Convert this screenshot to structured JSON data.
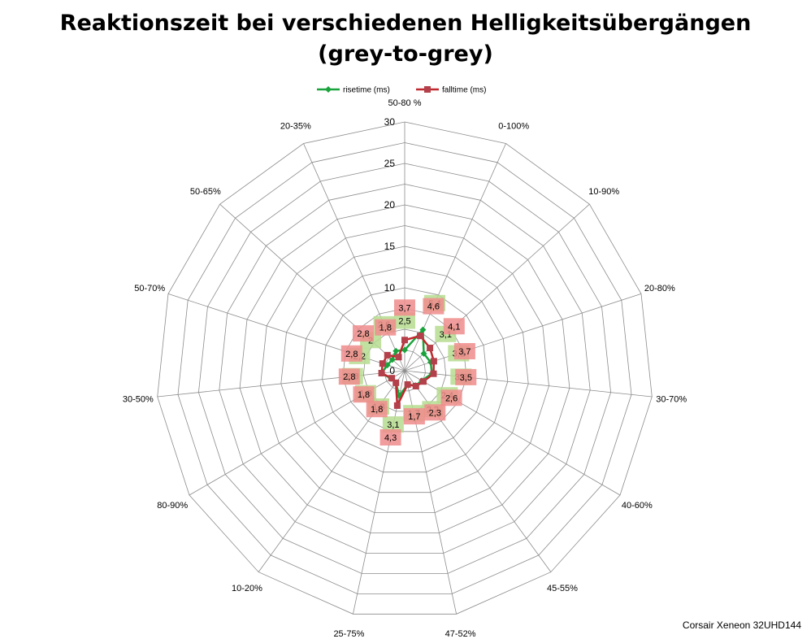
{
  "chart_data": {
    "type": "radar",
    "title_line1": "Reaktionszeit bei verschiedenen Helligkeitsübergängen",
    "title_line2": "(grey-to-grey)",
    "categories": [
      "50-80 %",
      "0-100%",
      "10-90%",
      "20-80%",
      "30-70%",
      "40-60%",
      "45-55%",
      "47-52%",
      "25-75%",
      "10-20%",
      "80-90%",
      "30-50%",
      "50-70%",
      "50-65%",
      "20-35%"
    ],
    "rmax": 30,
    "ticks": [
      "0",
      "5",
      "10",
      "15",
      "20",
      "25",
      "30"
    ],
    "series": [
      {
        "name": "risetime (ms)",
        "color": "#1aa33c",
        "label_bg": "#b6dc8f",
        "values": [
          2.5,
          5.4,
          3.1,
          3.3,
          3.3,
          2.4,
          2.2,
          1.7,
          3.1,
          1.8,
          1.9,
          2.8,
          2.2,
          2.0,
          2.6
        ],
        "labels": [
          "2,5",
          "5,4",
          "3,1",
          "3,3",
          "3,3",
          "2,4",
          "2,2",
          "1,7",
          "3,1",
          "1,8",
          "1,9",
          "2,8",
          "2,2",
          "2",
          "2,6"
        ]
      },
      {
        "name": "falltime (ms)",
        "color": "#c0282d",
        "label_bg": "#f08c8c",
        "values": [
          3.7,
          4.6,
          4.1,
          3.7,
          3.5,
          2.6,
          2.3,
          1.7,
          4.3,
          1.8,
          1.8,
          2.8,
          2.8,
          2.8,
          1.8
        ],
        "labels": [
          "3,7",
          "4,6",
          "4,1",
          "3,7",
          "3,5",
          "2,6",
          "2,3",
          "1,7",
          "4,3",
          "1,8",
          "1,8",
          "2,8",
          "2,8",
          "2,8",
          "1,8"
        ]
      }
    ]
  },
  "credit": "Corsair Xeneon 32UHD144"
}
